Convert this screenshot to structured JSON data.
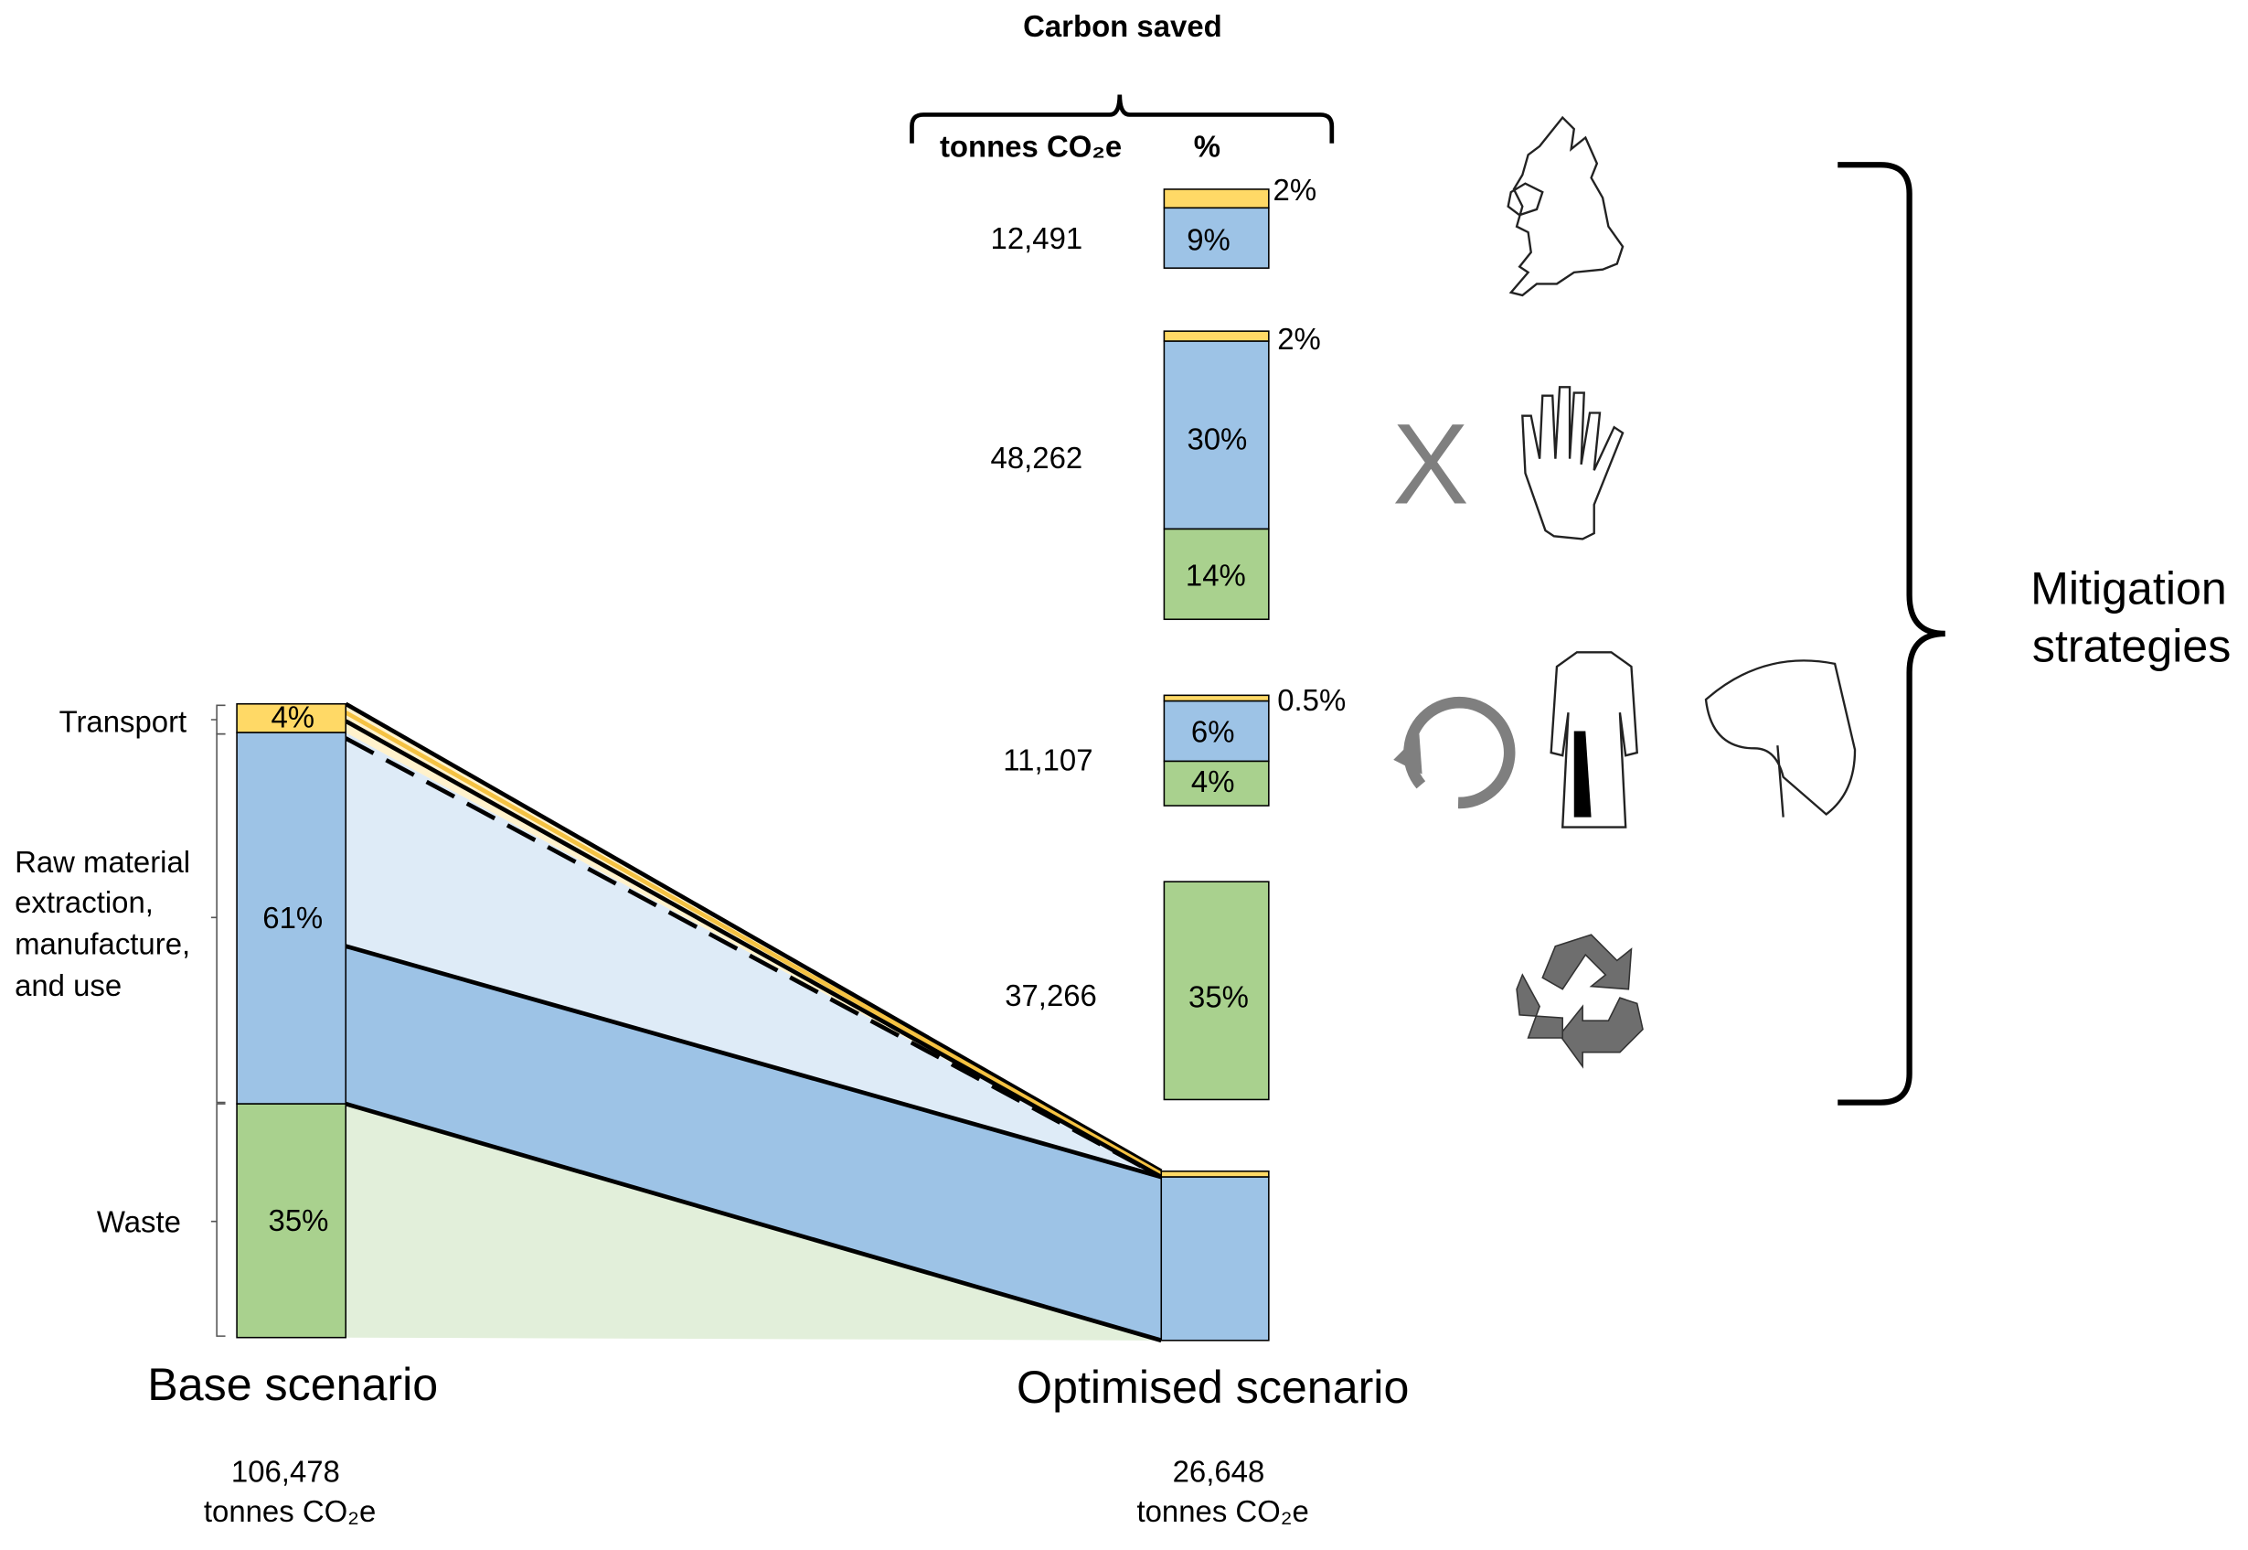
{
  "header": {
    "title": "Carbon saved",
    "col_tonnes": "tonnes CO₂e",
    "col_percent": "%"
  },
  "strategies": [
    {
      "tonnes": "12,491",
      "segments": [
        "2%",
        "9%"
      ]
    },
    {
      "tonnes": "48,262",
      "segments": [
        "2%",
        "30%",
        "14%"
      ]
    },
    {
      "tonnes": "11,107",
      "segments": [
        "0.5%",
        "6%",
        "4%"
      ]
    },
    {
      "tonnes": "37,266",
      "segments": [
        "35%"
      ]
    }
  ],
  "base": {
    "label": "Base scenario",
    "total": "106,478",
    "unit": "tonnes CO₂e",
    "segments": [
      "4%",
      "61%",
      "35%"
    ],
    "categories": [
      [
        "Transport"
      ],
      [
        "Raw material",
        "extraction,",
        "manufacture,",
        "and use"
      ],
      [
        "Waste"
      ]
    ]
  },
  "optimised": {
    "label": "Optimised scenario",
    "total": "26,648",
    "unit": "tonnes CO₂e"
  },
  "icons": {
    "x_mark": "X"
  },
  "side_label": [
    "Mitigation",
    "strategies"
  ]
}
